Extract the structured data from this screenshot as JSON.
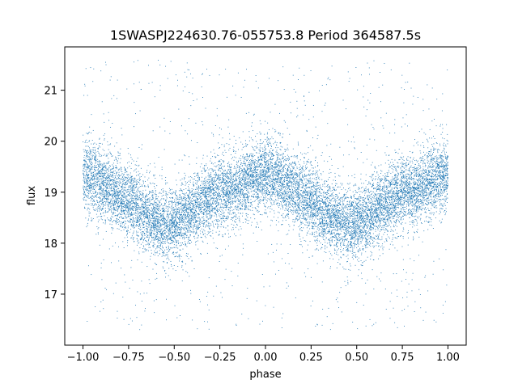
{
  "chart_data": {
    "type": "scatter",
    "title": "1SWASPJ224630.76-055753.8 Period 364587.5s",
    "xlabel": "phase",
    "ylabel": "flux",
    "xlim": [
      -1.1,
      1.1
    ],
    "ylim": [
      16.0,
      21.85
    ],
    "xticks": [
      -1.0,
      -0.75,
      -0.5,
      -0.25,
      0.0,
      0.25,
      0.5,
      0.75,
      1.0
    ],
    "xtick_labels": [
      "−1.00",
      "−0.75",
      "−0.50",
      "−0.25",
      "0.00",
      "0.25",
      "0.50",
      "0.75",
      "1.00"
    ],
    "yticks": [
      17,
      18,
      19,
      20,
      21
    ],
    "ytick_labels": [
      "17",
      "18",
      "19",
      "20",
      "21"
    ],
    "grid": false,
    "legend": "none",
    "marker_color": "#1f77b4",
    "series": [
      {
        "phase_range": [
          -1.0,
          1.0
        ],
        "profile": {
          "phase": [
            0.0,
            0.05,
            0.1,
            0.15,
            0.2,
            0.25,
            0.3,
            0.35,
            0.4,
            0.45,
            0.5,
            0.55,
            0.6,
            0.65,
            0.7,
            0.75,
            0.8,
            0.85,
            0.9,
            0.95,
            1.0
          ],
          "flux": [
            19.35,
            19.3,
            19.2,
            19.05,
            18.95,
            18.85,
            18.7,
            18.55,
            18.45,
            18.35,
            18.4,
            18.5,
            18.6,
            18.75,
            18.9,
            19.0,
            19.05,
            19.1,
            19.2,
            19.3,
            19.35
          ]
        },
        "scatter_sigma": 0.35,
        "outlier_range": [
          16.3,
          21.6
        ],
        "n_points": 14000
      }
    ]
  }
}
